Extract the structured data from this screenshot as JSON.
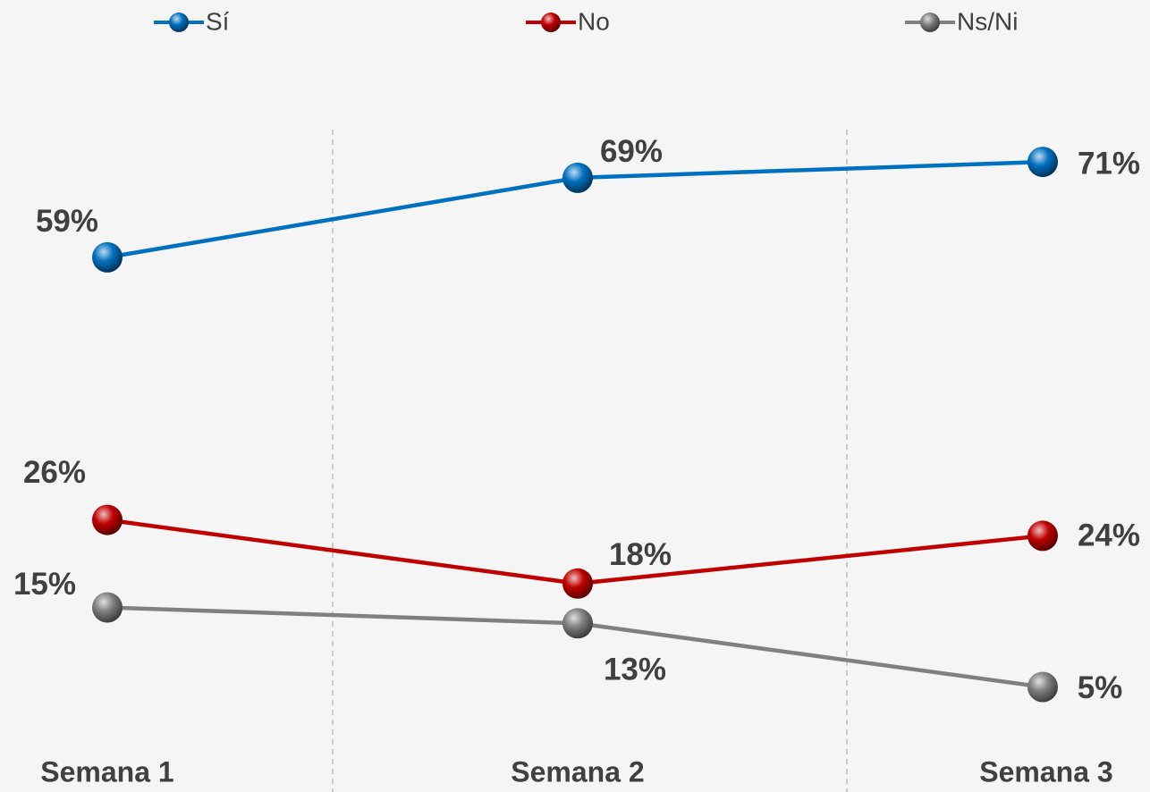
{
  "chart_data": {
    "type": "line",
    "categories": [
      "Semana 1",
      "Semana 2",
      "Semana 3"
    ],
    "series": [
      {
        "name": "Sí",
        "color": "#0070c0",
        "values": [
          59,
          69,
          71
        ],
        "value_labels": [
          "59%",
          "69%",
          "71%"
        ]
      },
      {
        "name": "No",
        "color": "#c00000",
        "values": [
          26,
          18,
          24
        ],
        "value_labels": [
          "26%",
          "18%",
          "24%"
        ]
      },
      {
        "name": "Ns/Ni",
        "color": "#808080",
        "values": [
          15,
          13,
          5
        ],
        "value_labels": [
          "15%",
          "13%",
          "5%"
        ]
      }
    ],
    "ylim": [
      0,
      80
    ],
    "legend": "top"
  }
}
